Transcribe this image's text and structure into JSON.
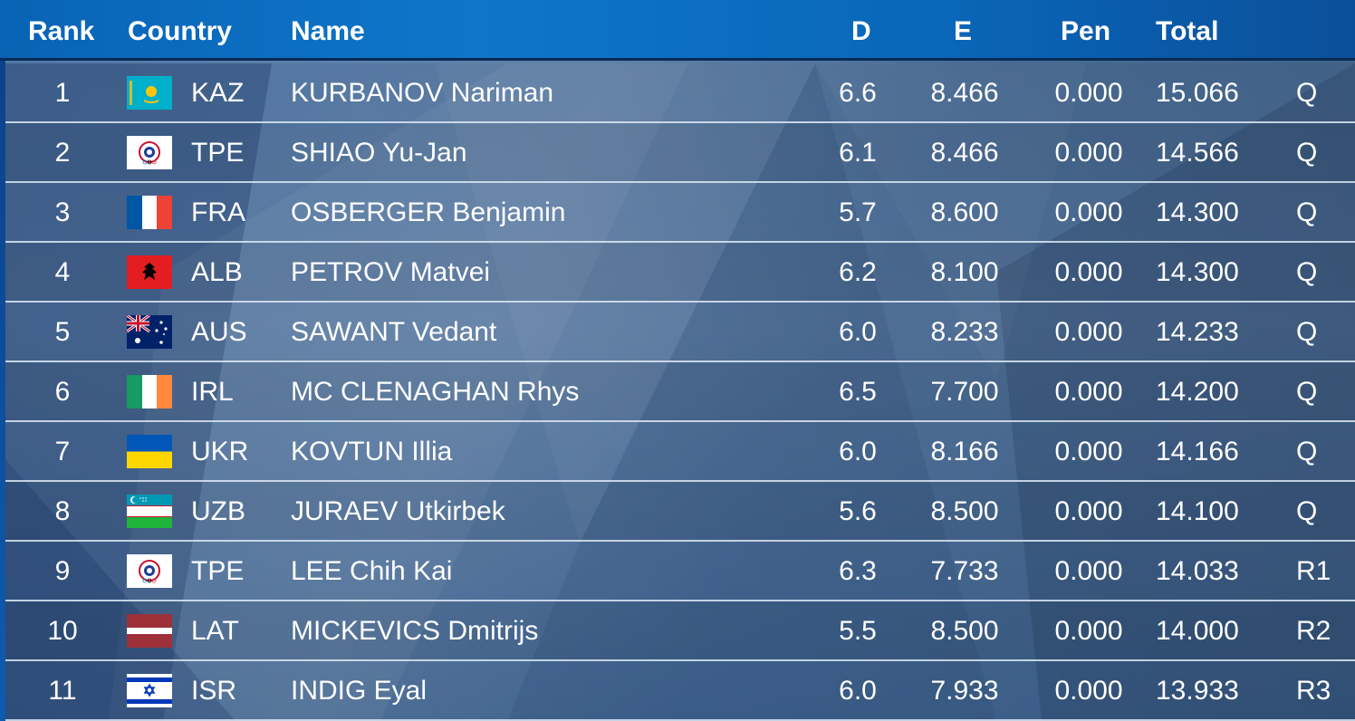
{
  "header": {
    "rank": "Rank",
    "country": "Country",
    "name": "Name",
    "d": "D",
    "e": "E",
    "pen": "Pen",
    "total": "Total"
  },
  "rows": [
    {
      "rank": "1",
      "code": "KAZ",
      "flag": "kaz-flag-icon",
      "name": "KURBANOV Nariman",
      "d": "6.6",
      "e": "8.466",
      "pen": "0.000",
      "total": "15.066",
      "q": "Q"
    },
    {
      "rank": "2",
      "code": "TPE",
      "flag": "tpe-flag-icon",
      "name": "SHIAO Yu-Jan",
      "d": "6.1",
      "e": "8.466",
      "pen": "0.000",
      "total": "14.566",
      "q": "Q"
    },
    {
      "rank": "3",
      "code": "FRA",
      "flag": "fra-flag-icon",
      "name": "OSBERGER Benjamin",
      "d": "5.7",
      "e": "8.600",
      "pen": "0.000",
      "total": "14.300",
      "q": "Q"
    },
    {
      "rank": "4",
      "code": "ALB",
      "flag": "alb-flag-icon",
      "name": "PETROV Matvei",
      "d": "6.2",
      "e": "8.100",
      "pen": "0.000",
      "total": "14.300",
      "q": "Q"
    },
    {
      "rank": "5",
      "code": "AUS",
      "flag": "aus-flag-icon",
      "name": "SAWANT Vedant",
      "d": "6.0",
      "e": "8.233",
      "pen": "0.000",
      "total": "14.233",
      "q": "Q"
    },
    {
      "rank": "6",
      "code": "IRL",
      "flag": "irl-flag-icon",
      "name": "MC CLENAGHAN Rhys",
      "d": "6.5",
      "e": "7.700",
      "pen": "0.000",
      "total": "14.200",
      "q": "Q"
    },
    {
      "rank": "7",
      "code": "UKR",
      "flag": "ukr-flag-icon",
      "name": "KOVTUN Illia",
      "d": "6.0",
      "e": "8.166",
      "pen": "0.000",
      "total": "14.166",
      "q": "Q"
    },
    {
      "rank": "8",
      "code": "UZB",
      "flag": "uzb-flag-icon",
      "name": "JURAEV Utkirbek",
      "d": "5.6",
      "e": "8.500",
      "pen": "0.000",
      "total": "14.100",
      "q": "Q"
    },
    {
      "rank": "9",
      "code": "TPE",
      "flag": "tpe-flag-icon",
      "name": "LEE Chih Kai",
      "d": "6.3",
      "e": "7.733",
      "pen": "0.000",
      "total": "14.033",
      "q": "R1"
    },
    {
      "rank": "10",
      "code": "LAT",
      "flag": "lat-flag-icon",
      "name": "MICKEVICS Dmitrijs",
      "d": "5.5",
      "e": "8.500",
      "pen": "0.000",
      "total": "14.000",
      "q": "R2"
    },
    {
      "rank": "11",
      "code": "ISR",
      "flag": "isr-flag-icon",
      "name": "INDIG Eyal",
      "d": "6.0",
      "e": "7.933",
      "pen": "0.000",
      "total": "13.933",
      "q": "R3"
    }
  ],
  "colors": {
    "header_bg": "#0d76c9",
    "header_border": "#082a55",
    "row_divider": "#dce8f5",
    "text": "#ffffff"
  }
}
